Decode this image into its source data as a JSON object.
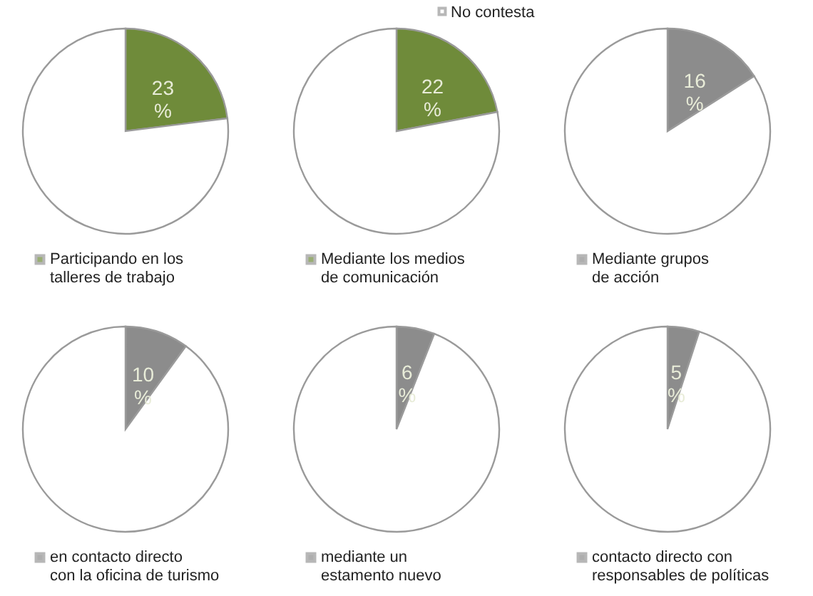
{
  "chart_data": [
    {
      "type": "pie",
      "categories": [
        "Participando en los\ntalleres de trabajo",
        null
      ],
      "values": [
        23,
        77
      ],
      "colors": [
        "#6f8b3a",
        "#ffffff"
      ],
      "value_labels": [
        "23 %",
        null
      ],
      "legend": "bottom"
    },
    {
      "type": "pie",
      "categories": [
        "Mediante los medios\nde comunicación",
        "No contesta"
      ],
      "values": [
        22,
        78
      ],
      "colors": [
        "#6f8b3a",
        "#ffffff"
      ],
      "value_labels": [
        "22 %",
        null
      ],
      "legend": "bottom"
    },
    {
      "type": "pie",
      "categories": [
        "Mediante grupos\nde acción",
        null
      ],
      "values": [
        16,
        84
      ],
      "colors": [
        "#8c8c8c",
        "#ffffff"
      ],
      "value_labels": [
        "16 %",
        null
      ],
      "legend": "bottom"
    },
    {
      "type": "pie",
      "categories": [
        "en contacto directo\ncon la oficina de turismo",
        null
      ],
      "values": [
        10,
        90
      ],
      "colors": [
        "#8c8c8c",
        "#ffffff"
      ],
      "value_labels": [
        "10 %",
        null
      ],
      "legend": "bottom"
    },
    {
      "type": "pie",
      "categories": [
        "mediante  un\nestamento nuevo",
        null
      ],
      "values": [
        6,
        94
      ],
      "colors": [
        "#8c8c8c",
        "#ffffff"
      ],
      "value_labels": [
        "6 %",
        null
      ],
      "legend": "bottom"
    },
    {
      "type": "pie",
      "categories": [
        "contacto directo con\nresponsables de políticas",
        null
      ],
      "values": [
        5,
        95
      ],
      "colors": [
        "#8c8c8c",
        "#ffffff"
      ],
      "value_labels": [
        "5 %",
        null
      ],
      "legend": "bottom"
    }
  ]
}
